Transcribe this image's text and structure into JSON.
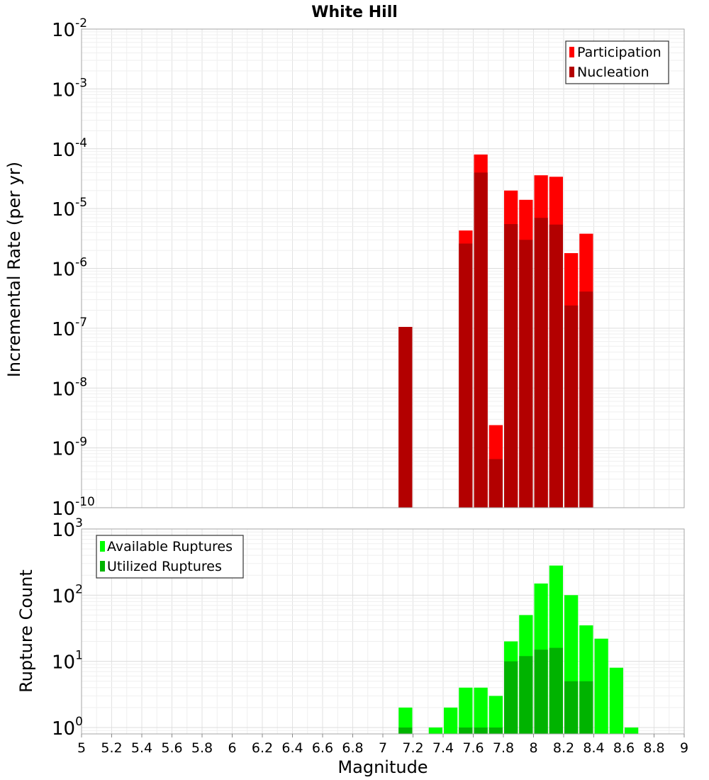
{
  "chart_data": [
    {
      "type": "bar",
      "title": "White Hill",
      "xlabel": "",
      "ylabel": "Incremental Rate (per yr)",
      "yscale": "log",
      "ylim": [
        1e-10,
        0.01
      ],
      "xlim": [
        5,
        9
      ],
      "grid": true,
      "legend_position": "top-right",
      "y_tick_labels": [
        {
          "base": "10",
          "exp": "-10",
          "value": 1e-10
        },
        {
          "base": "10",
          "exp": "-9",
          "value": 1e-09
        },
        {
          "base": "10",
          "exp": "-8",
          "value": 1e-08
        },
        {
          "base": "10",
          "exp": "-7",
          "value": 1e-07
        },
        {
          "base": "10",
          "exp": "-6",
          "value": 1e-06
        },
        {
          "base": "10",
          "exp": "-5",
          "value": 1e-05
        },
        {
          "base": "10",
          "exp": "-4",
          "value": 0.0001
        },
        {
          "base": "10",
          "exp": "-3",
          "value": 0.001
        },
        {
          "base": "10",
          "exp": "-2",
          "value": 0.01
        }
      ],
      "bin_width": 0.1,
      "x": [
        7.15,
        7.55,
        7.65,
        7.75,
        7.85,
        7.95,
        8.05,
        8.15,
        8.25,
        8.35
      ],
      "series": [
        {
          "name": "Participation",
          "color": "#ff0000",
          "values": [
            1.05e-07,
            4.3e-06,
            8e-05,
            2.4e-09,
            2e-05,
            1.4e-05,
            3.6e-05,
            3.4e-05,
            1.8e-06,
            3.8e-06
          ]
        },
        {
          "name": "Nucleation",
          "color": "#b30000",
          "values": [
            1.05e-07,
            2.6e-06,
            4e-05,
            6.5e-10,
            5.5e-06,
            3e-06,
            7e-06,
            5.4e-06,
            2.4e-07,
            4.1e-07
          ]
        }
      ]
    },
    {
      "type": "bar",
      "title": "",
      "xlabel": "Magnitude",
      "ylabel": "Rupture Count",
      "yscale": "log",
      "ylim": [
        0.8,
        1000
      ],
      "xlim": [
        5,
        9
      ],
      "grid": true,
      "legend_position": "top-left",
      "y_tick_labels": [
        {
          "base": "10",
          "exp": "0",
          "value": 1
        },
        {
          "base": "10",
          "exp": "1",
          "value": 10
        },
        {
          "base": "10",
          "exp": "2",
          "value": 100
        },
        {
          "base": "10",
          "exp": "3",
          "value": 1000
        }
      ],
      "x_tick_labels": [
        "5",
        "5.2",
        "5.4",
        "5.6",
        "5.8",
        "6",
        "6.2",
        "6.4",
        "6.6",
        "6.8",
        "7",
        "7.2",
        "7.4",
        "7.6",
        "7.8",
        "8",
        "8.2",
        "8.4",
        "8.6",
        "8.8",
        "9"
      ],
      "bin_width": 0.1,
      "x": [
        7.15,
        7.35,
        7.45,
        7.55,
        7.65,
        7.75,
        7.85,
        7.95,
        8.05,
        8.15,
        8.25,
        8.35,
        8.45,
        8.55,
        8.65
      ],
      "series": [
        {
          "name": "Available Ruptures",
          "color": "#00ff00",
          "values": [
            2,
            1,
            2,
            4,
            4,
            3,
            20,
            50,
            150,
            280,
            100,
            35,
            22,
            8,
            1
          ]
        },
        {
          "name": "Utilized Ruptures",
          "color": "#00b300",
          "values": [
            1,
            null,
            null,
            1,
            1,
            1,
            10,
            12,
            15,
            16,
            5,
            5,
            null,
            null,
            null
          ]
        }
      ]
    }
  ]
}
